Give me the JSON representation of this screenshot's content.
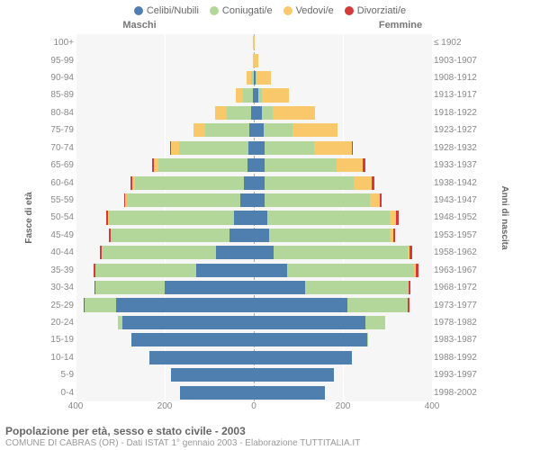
{
  "legend": [
    {
      "label": "Celibi/Nubili",
      "color": "#4f7faf"
    },
    {
      "label": "Coniugati/e",
      "color": "#b3d69b"
    },
    {
      "label": "Vedovi/e",
      "color": "#f9c86b"
    },
    {
      "label": "Divorziati/e",
      "color": "#d43a3a"
    }
  ],
  "gender": {
    "male": "Maschi",
    "female": "Femmine"
  },
  "axis_left_title": "Fasce di età",
  "axis_right_title": "Anni di nascita",
  "background_color": "#f6f6f6",
  "x_max": 400,
  "x_ticks": [
    400,
    200,
    0,
    200,
    400
  ],
  "title": "Popolazione per età, sesso e stato civile - 2003",
  "subtitle": "COMUNE DI CABRAS (OR) - Dati ISTAT 1° gennaio 2003 - Elaborazione TUTTITALIA.IT",
  "rows": [
    {
      "age": "100+",
      "year": "≤ 1902",
      "m": {
        "c": 0,
        "co": 0,
        "v": 3,
        "d": 0
      },
      "f": {
        "c": 0,
        "co": 0,
        "v": 1,
        "d": 0
      }
    },
    {
      "age": "95-99",
      "year": "1903-1907",
      "m": {
        "c": 0,
        "co": 0,
        "v": 3,
        "d": 0
      },
      "f": {
        "c": 1,
        "co": 0,
        "v": 10,
        "d": 0
      }
    },
    {
      "age": "90-94",
      "year": "1908-1912",
      "m": {
        "c": 1,
        "co": 5,
        "v": 10,
        "d": 0
      },
      "f": {
        "c": 4,
        "co": 2,
        "v": 32,
        "d": 0
      }
    },
    {
      "age": "85-89",
      "year": "1913-1917",
      "m": {
        "c": 3,
        "co": 22,
        "v": 15,
        "d": 0
      },
      "f": {
        "c": 10,
        "co": 8,
        "v": 60,
        "d": 0
      }
    },
    {
      "age": "80-84",
      "year": "1918-1922",
      "m": {
        "c": 6,
        "co": 55,
        "v": 25,
        "d": 0
      },
      "f": {
        "c": 18,
        "co": 25,
        "v": 95,
        "d": 0
      }
    },
    {
      "age": "75-79",
      "year": "1923-1927",
      "m": {
        "c": 10,
        "co": 100,
        "v": 25,
        "d": 0
      },
      "f": {
        "c": 22,
        "co": 65,
        "v": 100,
        "d": 0
      }
    },
    {
      "age": "70-74",
      "year": "1928-1932",
      "m": {
        "c": 12,
        "co": 155,
        "v": 18,
        "d": 2
      },
      "f": {
        "c": 25,
        "co": 110,
        "v": 85,
        "d": 2
      }
    },
    {
      "age": "65-69",
      "year": "1933-1937",
      "m": {
        "c": 15,
        "co": 200,
        "v": 10,
        "d": 3
      },
      "f": {
        "c": 25,
        "co": 160,
        "v": 60,
        "d": 5
      }
    },
    {
      "age": "60-64",
      "year": "1938-1942",
      "m": {
        "c": 22,
        "co": 245,
        "v": 6,
        "d": 3
      },
      "f": {
        "c": 25,
        "co": 200,
        "v": 40,
        "d": 5
      }
    },
    {
      "age": "55-59",
      "year": "1943-1947",
      "m": {
        "c": 30,
        "co": 255,
        "v": 4,
        "d": 3
      },
      "f": {
        "c": 25,
        "co": 235,
        "v": 22,
        "d": 5
      }
    },
    {
      "age": "50-54",
      "year": "1948-1952",
      "m": {
        "c": 45,
        "co": 280,
        "v": 3,
        "d": 4
      },
      "f": {
        "c": 30,
        "co": 275,
        "v": 15,
        "d": 5
      }
    },
    {
      "age": "45-49",
      "year": "1953-1957",
      "m": {
        "c": 55,
        "co": 265,
        "v": 2,
        "d": 3
      },
      "f": {
        "c": 35,
        "co": 270,
        "v": 8,
        "d": 5
      }
    },
    {
      "age": "40-44",
      "year": "1958-1962",
      "m": {
        "c": 85,
        "co": 255,
        "v": 1,
        "d": 4
      },
      "f": {
        "c": 45,
        "co": 300,
        "v": 5,
        "d": 5
      }
    },
    {
      "age": "35-39",
      "year": "1963-1967",
      "m": {
        "c": 130,
        "co": 225,
        "v": 0,
        "d": 5
      },
      "f": {
        "c": 75,
        "co": 285,
        "v": 3,
        "d": 7
      }
    },
    {
      "age": "30-34",
      "year": "1968-1972",
      "m": {
        "c": 200,
        "co": 155,
        "v": 0,
        "d": 3
      },
      "f": {
        "c": 115,
        "co": 230,
        "v": 2,
        "d": 5
      }
    },
    {
      "age": "25-29",
      "year": "1973-1977",
      "m": {
        "c": 310,
        "co": 70,
        "v": 0,
        "d": 2
      },
      "f": {
        "c": 210,
        "co": 135,
        "v": 1,
        "d": 3
      }
    },
    {
      "age": "20-24",
      "year": "1978-1982",
      "m": {
        "c": 295,
        "co": 10,
        "v": 0,
        "d": 0
      },
      "f": {
        "c": 250,
        "co": 45,
        "v": 0,
        "d": 0
      }
    },
    {
      "age": "15-19",
      "year": "1983-1987",
      "m": {
        "c": 275,
        "co": 0,
        "v": 0,
        "d": 0
      },
      "f": {
        "c": 255,
        "co": 2,
        "v": 0,
        "d": 0
      }
    },
    {
      "age": "10-14",
      "year": "1988-1992",
      "m": {
        "c": 235,
        "co": 0,
        "v": 0,
        "d": 0
      },
      "f": {
        "c": 220,
        "co": 0,
        "v": 0,
        "d": 0
      }
    },
    {
      "age": "5-9",
      "year": "1993-1997",
      "m": {
        "c": 185,
        "co": 0,
        "v": 0,
        "d": 0
      },
      "f": {
        "c": 180,
        "co": 0,
        "v": 0,
        "d": 0
      }
    },
    {
      "age": "0-4",
      "year": "1998-2002",
      "m": {
        "c": 165,
        "co": 0,
        "v": 0,
        "d": 0
      },
      "f": {
        "c": 160,
        "co": 0,
        "v": 0,
        "d": 0
      }
    }
  ]
}
